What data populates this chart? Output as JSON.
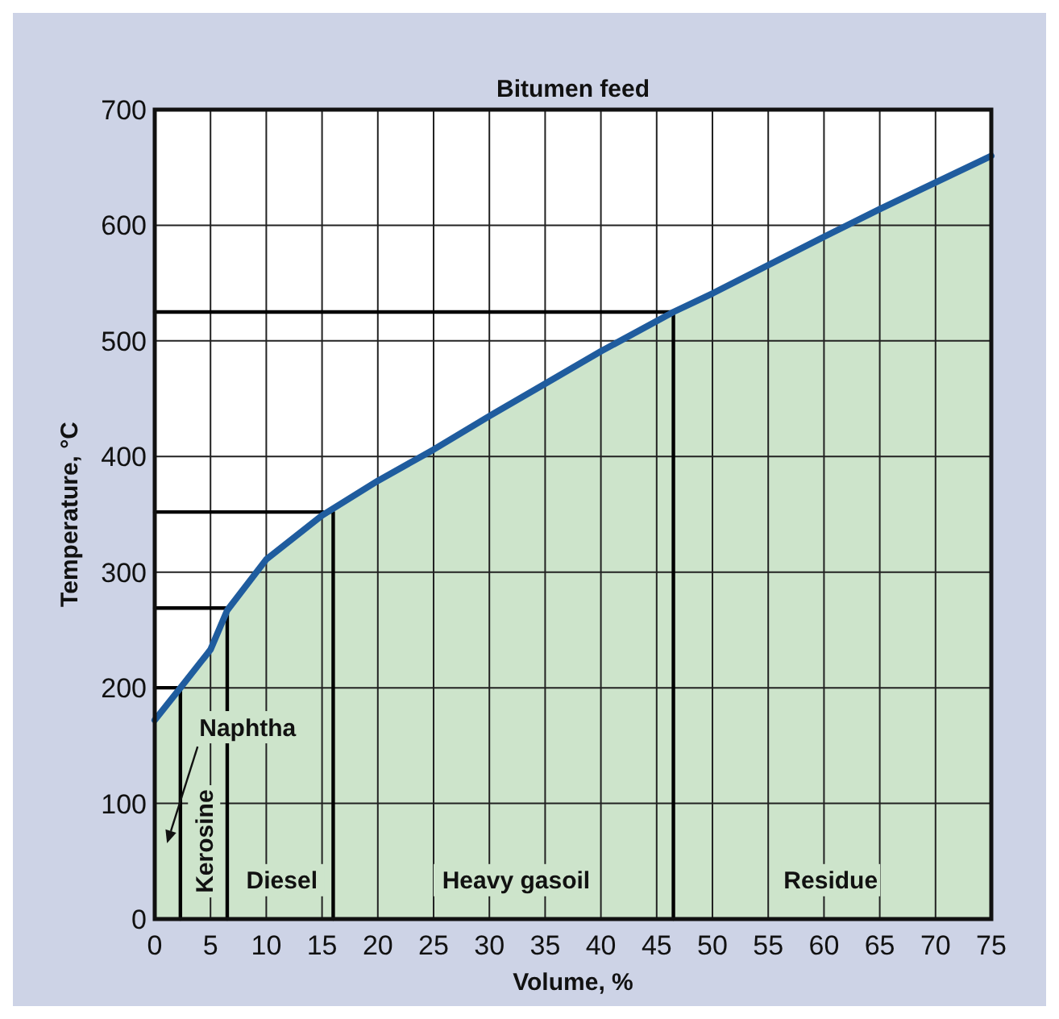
{
  "chart_data": {
    "type": "area",
    "title": "Bitumen feed",
    "xlabel": "Volume, %",
    "ylabel": "Temperature, °C",
    "xlim": [
      0,
      75
    ],
    "xticks": [
      0,
      5,
      10,
      15,
      20,
      25,
      30,
      35,
      40,
      45,
      50,
      55,
      60,
      65,
      70,
      75
    ],
    "ylim": [
      0,
      700
    ],
    "yticks": [
      0,
      100,
      200,
      300,
      400,
      500,
      600,
      700
    ],
    "grid": true,
    "line_style": "solid",
    "series": [
      {
        "color": "#cde4cb",
        "x": [
          0,
          2.3,
          5,
          6.5,
          10,
          15,
          20,
          25,
          30,
          35,
          40,
          46.5,
          50,
          60,
          65,
          75
        ],
        "values": [
          172,
          200,
          233,
          267,
          311,
          349,
          379,
          406,
          435,
          463,
          491,
          525,
          541,
          590,
          614,
          660
        ]
      },
      {
        "type": "line",
        "color": "#000000",
        "x": [
          0,
          2.3,
          2.3
        ],
        "values": [
          200,
          200,
          0
        ]
      },
      {
        "type": "line",
        "color": "#000000",
        "x": [
          0,
          6.5,
          6.5
        ],
        "values": [
          269,
          269,
          0
        ]
      },
      {
        "type": "line",
        "color": "#000000",
        "x": [
          0,
          16,
          16
        ],
        "values": [
          352,
          352,
          0
        ]
      },
      {
        "type": "line",
        "color": "#000000",
        "x": [
          0,
          46.5,
          46.5
        ],
        "values": [
          525,
          525,
          0
        ]
      }
    ],
    "annotations": [
      "Naphtha",
      "Kerosine",
      "Diesel",
      "Heavy gasoil",
      "Residue"
    ]
  }
}
